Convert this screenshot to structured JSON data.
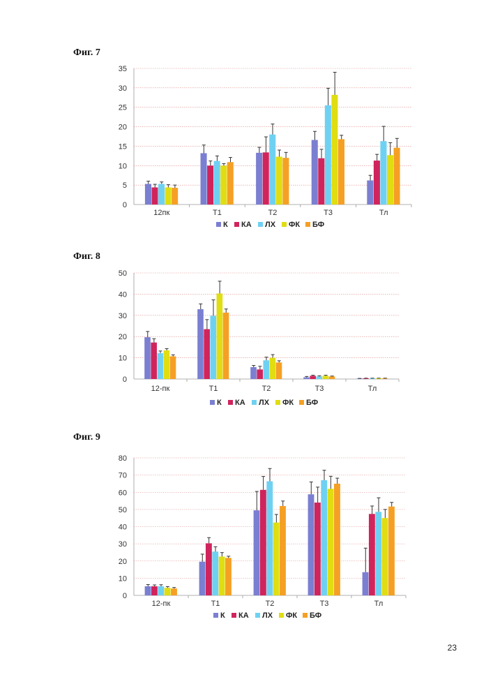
{
  "page_number": "23",
  "colors": {
    "К": "#7b7fd1",
    "КА": "#d0245c",
    "ЛХ": "#6fd1f2",
    "ФК": "#e0dd12",
    "БФ": "#f5a024",
    "grid": "#e08a8a",
    "error": "#333333"
  },
  "chart_data": [
    {
      "type": "bar",
      "title": "Фиг. 7",
      "categories": [
        "12пк",
        "Т1",
        "Т2",
        "Т3",
        "Тл"
      ],
      "ylim": [
        0,
        35
      ],
      "yticks": [
        0,
        5,
        10,
        15,
        20,
        25,
        30,
        35
      ],
      "legend": [
        "К",
        "КА",
        "ЛХ",
        "ФК",
        "БФ"
      ],
      "series": [
        {
          "name": "К",
          "values": [
            5.3,
            13.2,
            13.3,
            16.6,
            6.2
          ],
          "errors": [
            0.7,
            2.1,
            1.4,
            2.2,
            1.3
          ]
        },
        {
          "name": "КА",
          "values": [
            4.4,
            10.0,
            13.4,
            11.9,
            11.3
          ],
          "errors": [
            0.8,
            1.2,
            4.0,
            2.3,
            1.6
          ]
        },
        {
          "name": "ЛХ",
          "values": [
            5.3,
            11.2,
            18.0,
            25.5,
            16.3
          ],
          "errors": [
            0.5,
            1.3,
            2.7,
            4.4,
            3.8
          ]
        },
        {
          "name": "ФК",
          "values": [
            4.4,
            10.0,
            12.3,
            28.2,
            12.7
          ],
          "errors": [
            0.7,
            0.5,
            1.7,
            5.8,
            3.2
          ]
        },
        {
          "name": "БФ",
          "values": [
            4.3,
            10.9,
            12.0,
            16.8,
            14.6
          ],
          "errors": [
            0.7,
            1.2,
            1.4,
            1.0,
            2.4
          ]
        }
      ]
    },
    {
      "type": "bar",
      "title": "Фиг. 8",
      "categories": [
        "12-пк",
        "Т1",
        "Т2",
        "Т3",
        "Тл"
      ],
      "ylim": [
        0,
        50
      ],
      "yticks": [
        0,
        10,
        20,
        30,
        40,
        50
      ],
      "legend": [
        "К",
        "КА",
        "ЛХ",
        "ФК",
        "БФ"
      ],
      "series": [
        {
          "name": "К",
          "values": [
            19.7,
            32.9,
            5.6,
            0.8,
            0.2
          ],
          "errors": [
            2.7,
            2.5,
            0.8,
            0.4,
            0.1
          ]
        },
        {
          "name": "КА",
          "values": [
            17.2,
            23.5,
            4.5,
            1.5,
            0.3
          ],
          "errors": [
            1.8,
            4.5,
            1.5,
            0.3,
            0.1
          ]
        },
        {
          "name": "ЛХ",
          "values": [
            12.2,
            29.8,
            8.8,
            1.2,
            0.3
          ],
          "errors": [
            1.0,
            7.5,
            1.5,
            0.3,
            0.1
          ]
        },
        {
          "name": "ФК",
          "values": [
            13.5,
            40.3,
            10.0,
            1.5,
            0.3
          ],
          "errors": [
            0.8,
            5.8,
            1.5,
            0.3,
            0.1
          ]
        },
        {
          "name": "БФ",
          "values": [
            10.7,
            31.3,
            7.8,
            1.2,
            0.3
          ],
          "errors": [
            0.7,
            1.7,
            0.8,
            0.2,
            0.1
          ]
        }
      ]
    },
    {
      "type": "bar",
      "title": "Фиг. 9",
      "categories": [
        "12-пк",
        "Т1",
        "Т2",
        "Т3",
        "Тл"
      ],
      "ylim": [
        0,
        80
      ],
      "yticks": [
        0,
        10,
        20,
        30,
        40,
        50,
        60,
        70,
        80
      ],
      "legend": [
        "К",
        "КА",
        "ЛХ",
        "ФК",
        "БФ"
      ],
      "series": [
        {
          "name": "К",
          "values": [
            5.3,
            19.6,
            49.5,
            58.8,
            13.5
          ],
          "errors": [
            1.0,
            4.4,
            11.0,
            7.2,
            14.0
          ]
        },
        {
          "name": "КА",
          "values": [
            5.3,
            30.3,
            61.4,
            54.0,
            47.4
          ],
          "errors": [
            0.8,
            3.3,
            7.8,
            9.0,
            4.6
          ]
        },
        {
          "name": "ЛХ",
          "values": [
            5.3,
            25.5,
            66.4,
            67.0,
            48.6
          ],
          "errors": [
            0.9,
            2.8,
            7.4,
            5.8,
            8.2
          ]
        },
        {
          "name": "ФК",
          "values": [
            4.4,
            22.6,
            42.4,
            62.0,
            45.0
          ],
          "errors": [
            0.7,
            2.3,
            4.7,
            7.3,
            5.0
          ]
        },
        {
          "name": "БФ",
          "values": [
            4.0,
            21.8,
            52.0,
            65.0,
            51.7
          ],
          "errors": [
            0.6,
            1.0,
            2.9,
            3.2,
            2.4
          ]
        }
      ]
    }
  ]
}
